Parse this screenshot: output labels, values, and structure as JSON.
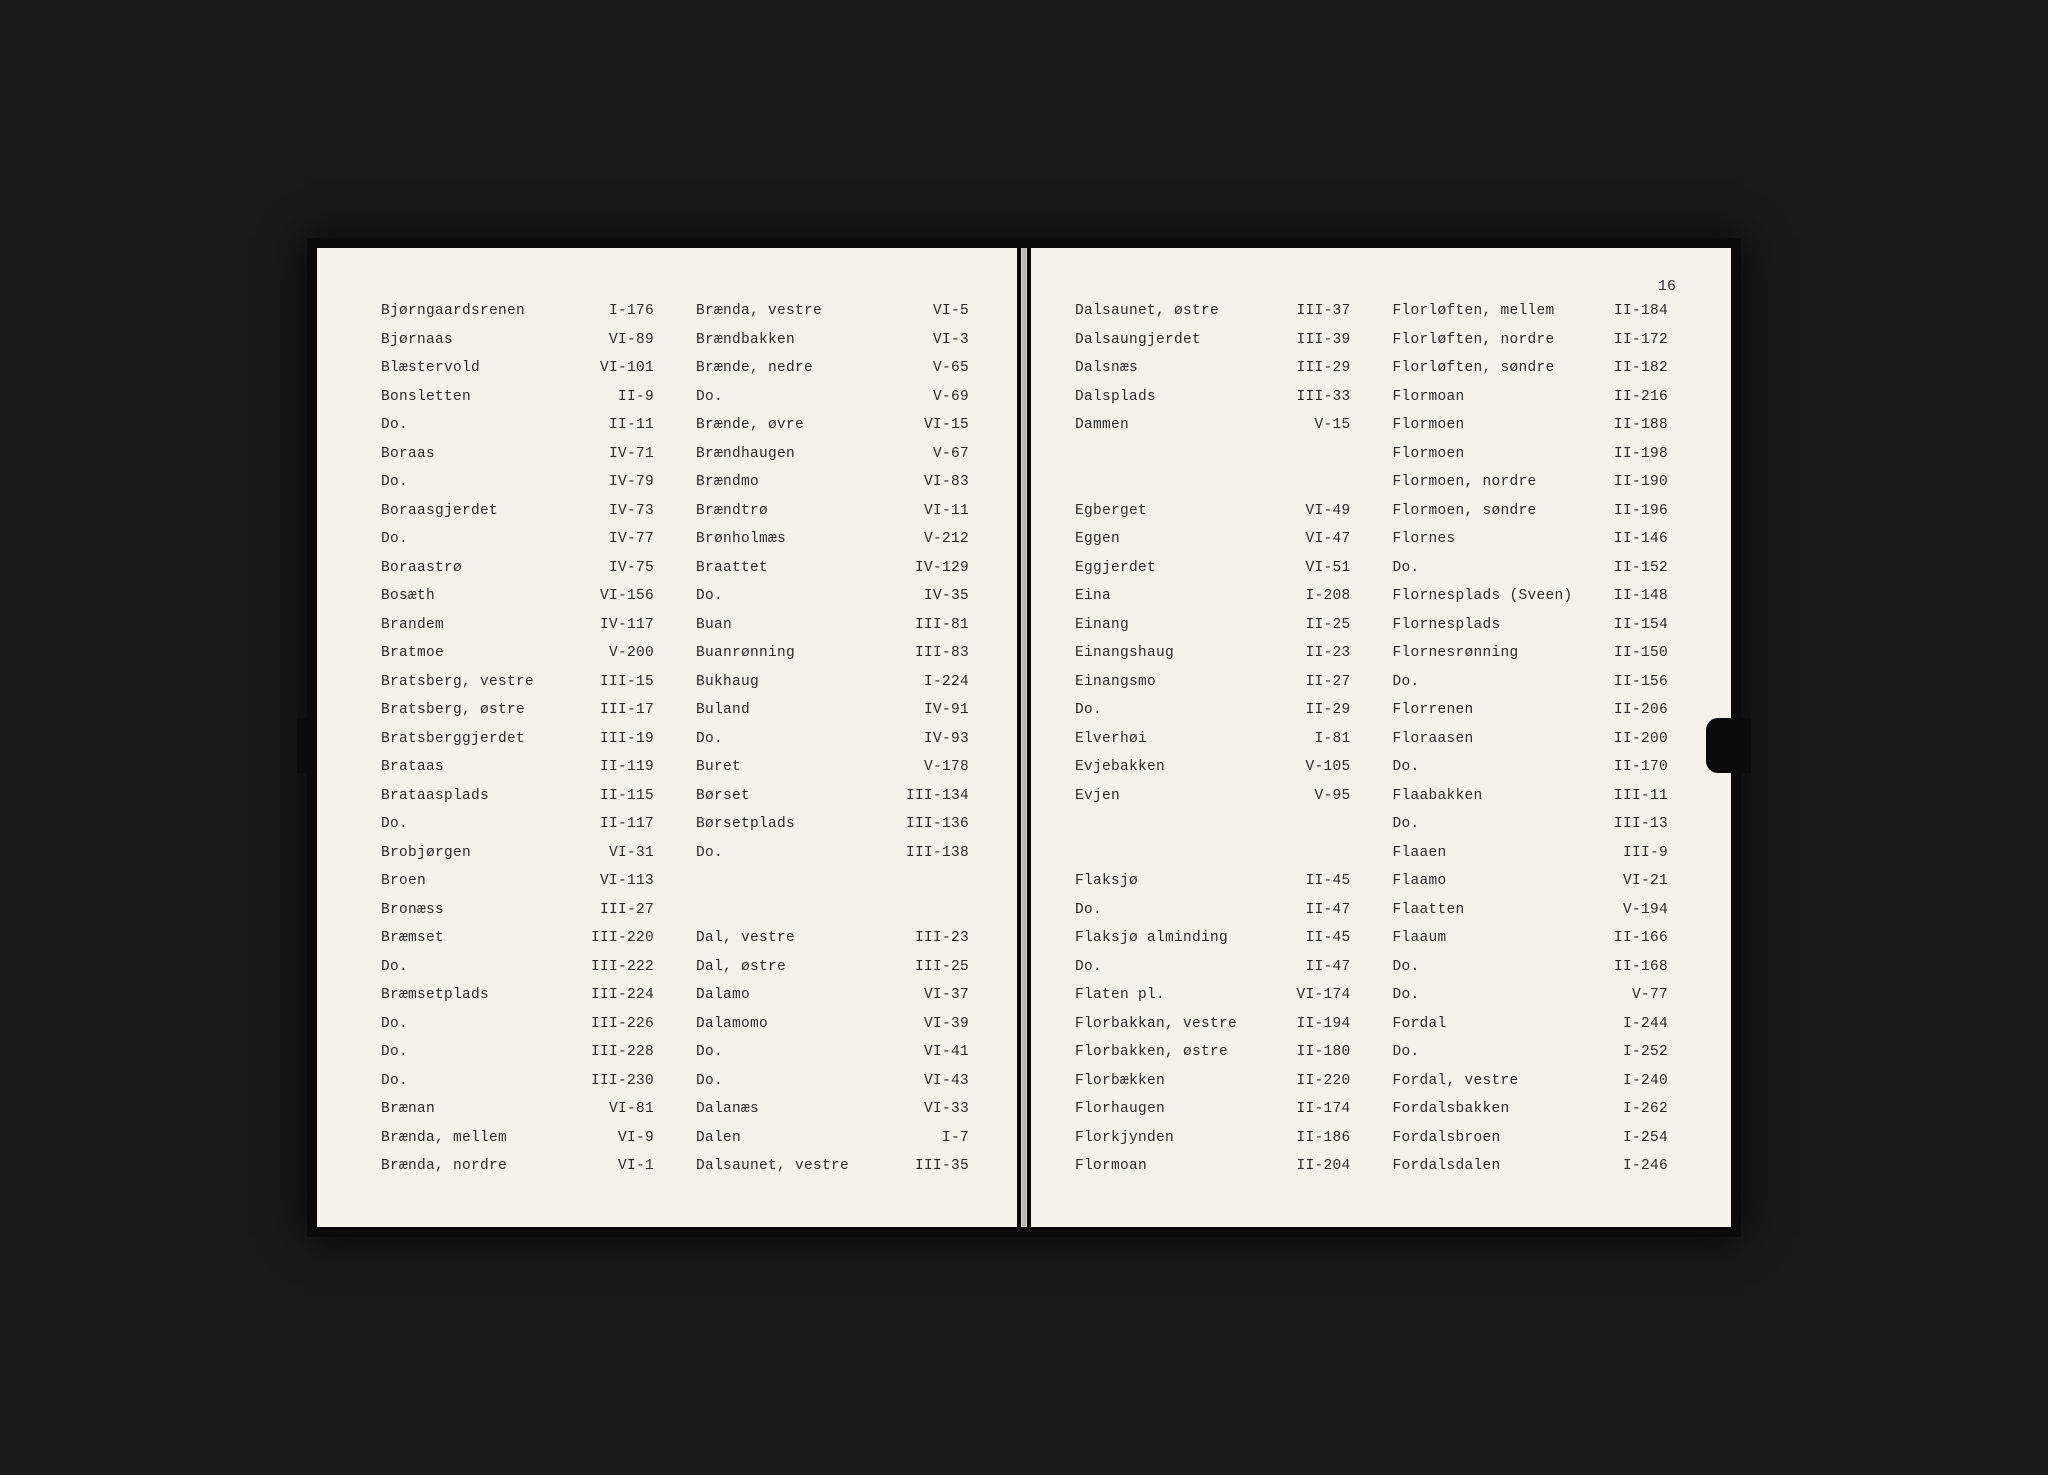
{
  "page_number": "16",
  "typography": {
    "font_family": "Courier",
    "font_size_pt": 14.5,
    "text_color": "#2a2a2a",
    "page_bg": "#f5f2eb",
    "outer_bg": "#1a1a1a"
  },
  "left_page": {
    "col1": [
      {
        "name": "Bjørngaardsrenen",
        "ref": "I-176"
      },
      {
        "name": "Bjørnaas",
        "ref": "VI-89"
      },
      {
        "name": "Blæstervold",
        "ref": "VI-101"
      },
      {
        "name": "Bonsletten",
        "ref": "II-9"
      },
      {
        "name": " Do.",
        "ref": "II-11"
      },
      {
        "name": "Boraas",
        "ref": "IV-71"
      },
      {
        "name": " Do.",
        "ref": "IV-79"
      },
      {
        "name": "Boraasgjerdet",
        "ref": "IV-73"
      },
      {
        "name": " Do.",
        "ref": "IV-77"
      },
      {
        "name": "Boraastrø",
        "ref": "IV-75"
      },
      {
        "name": "Bosæth",
        "ref": "VI-156"
      },
      {
        "name": "Brandem",
        "ref": "IV-117"
      },
      {
        "name": "Bratmoe",
        "ref": "V-200"
      },
      {
        "name": "Bratsberg, vestre",
        "ref": "III-15"
      },
      {
        "name": "Bratsberg, østre",
        "ref": "III-17"
      },
      {
        "name": "Bratsberggjerdet",
        "ref": "III-19"
      },
      {
        "name": "Brataas",
        "ref": "II-119"
      },
      {
        "name": "Brataasplads",
        "ref": "II-115"
      },
      {
        "name": " Do.",
        "ref": "II-117"
      },
      {
        "name": "Brobjørgen",
        "ref": "VI-31"
      },
      {
        "name": "Broen",
        "ref": "VI-113"
      },
      {
        "name": "Bronæss",
        "ref": "III-27"
      },
      {
        "name": "Bræmset",
        "ref": "III-220"
      },
      {
        "name": " Do.",
        "ref": "III-222"
      },
      {
        "name": "Bræmsetplads",
        "ref": "III-224"
      },
      {
        "name": " Do.",
        "ref": "III-226"
      },
      {
        "name": " Do.",
        "ref": "III-228"
      },
      {
        "name": " Do.",
        "ref": "III-230"
      },
      {
        "name": "Brænan",
        "ref": "VI-81"
      },
      {
        "name": "Brænda, mellem",
        "ref": "VI-9"
      },
      {
        "name": "Brænda, nordre",
        "ref": "VI-1"
      }
    ],
    "col2": [
      {
        "name": "Brænda, vestre",
        "ref": "VI-5"
      },
      {
        "name": "Brændbakken",
        "ref": "VI-3"
      },
      {
        "name": "Brænde, nedre",
        "ref": "V-65"
      },
      {
        "name": " Do.",
        "ref": "V-69"
      },
      {
        "name": "Brænde, øvre",
        "ref": "VI-15"
      },
      {
        "name": "Brændhaugen",
        "ref": "V-67"
      },
      {
        "name": "Brændmo",
        "ref": "VI-83"
      },
      {
        "name": "Brændtrø",
        "ref": "VI-11"
      },
      {
        "name": "Brønholmæs",
        "ref": "V-212"
      },
      {
        "name": "Braattet",
        "ref": "IV-129"
      },
      {
        "name": " Do.",
        "ref": "IV-35"
      },
      {
        "name": "Buan",
        "ref": "III-81"
      },
      {
        "name": "Buanrønning",
        "ref": "III-83"
      },
      {
        "name": "Bukhaug",
        "ref": "I-224"
      },
      {
        "name": "Buland",
        "ref": "IV-91"
      },
      {
        "name": " Do.",
        "ref": "IV-93"
      },
      {
        "name": "Buret",
        "ref": "V-178"
      },
      {
        "name": "Børset",
        "ref": "III-134"
      },
      {
        "name": "Børsetplads",
        "ref": "III-136"
      },
      {
        "name": " Do.",
        "ref": "III-138"
      },
      {
        "gap": true
      },
      {
        "gap": true
      },
      {
        "name": "Dal, vestre",
        "ref": "III-23"
      },
      {
        "name": "Dal, østre",
        "ref": "III-25"
      },
      {
        "name": "Dalamo",
        "ref": "VI-37"
      },
      {
        "name": "Dalamomo",
        "ref": "VI-39"
      },
      {
        "name": " Do.",
        "ref": "VI-41"
      },
      {
        "name": " Do.",
        "ref": "VI-43"
      },
      {
        "name": "Dalanæs",
        "ref": "VI-33"
      },
      {
        "name": "Dalen",
        "ref": "I-7"
      },
      {
        "name": "Dalsaunet, vestre",
        "ref": "III-35"
      }
    ]
  },
  "right_page": {
    "col1": [
      {
        "name": "Dalsaunet, østre",
        "ref": "III-37"
      },
      {
        "name": "Dalsaungjerdet",
        "ref": "III-39"
      },
      {
        "name": "Dalsnæs",
        "ref": "III-29"
      },
      {
        "name": "Dalsplads",
        "ref": "III-33"
      },
      {
        "name": "Dammen",
        "ref": "V-15"
      },
      {
        "gap": true
      },
      {
        "gap": true
      },
      {
        "name": "Egberget",
        "ref": "VI-49"
      },
      {
        "name": "Eggen",
        "ref": "VI-47"
      },
      {
        "name": "Eggjerdet",
        "ref": "VI-51"
      },
      {
        "name": "Eina",
        "ref": "I-208"
      },
      {
        "name": "Einang",
        "ref": "II-25"
      },
      {
        "name": "Einangshaug",
        "ref": "II-23"
      },
      {
        "name": "Einangsmo",
        "ref": "II-27"
      },
      {
        "name": " Do.",
        "ref": "II-29"
      },
      {
        "name": "Elverhøi",
        "ref": "I-81"
      },
      {
        "name": "Evjebakken",
        "ref": "V-105"
      },
      {
        "name": "Evjen",
        "ref": "V-95"
      },
      {
        "gap": true
      },
      {
        "gap": true
      },
      {
        "name": "Flaksjø",
        "ref": "II-45"
      },
      {
        "name": " Do.",
        "ref": "II-47"
      },
      {
        "name": "Flaksjø alminding",
        "ref": "II-45"
      },
      {
        "name": " Do.",
        "ref": "II-47"
      },
      {
        "name": "Flaten pl.",
        "ref": "VI-174"
      },
      {
        "name": "Florbakkan, vestre",
        "ref": "II-194"
      },
      {
        "name": "Florbakken, østre",
        "ref": "II-180"
      },
      {
        "name": "Florbækken",
        "ref": "II-220"
      },
      {
        "name": "Florhaugen",
        "ref": "II-174"
      },
      {
        "name": "Florkjynden",
        "ref": "II-186"
      },
      {
        "name": "Flormoan",
        "ref": "II-204"
      }
    ],
    "col2": [
      {
        "name": "Florløften, mellem",
        "ref": "II-184"
      },
      {
        "name": "Florløften, nordre",
        "ref": "II-172"
      },
      {
        "name": "Florløften, søndre",
        "ref": "II-182"
      },
      {
        "name": "Flormoan",
        "ref": "II-216"
      },
      {
        "name": "Flormoen",
        "ref": "II-188"
      },
      {
        "name": "Flormoen",
        "ref": "II-198"
      },
      {
        "name": "Flormoen, nordre",
        "ref": "II-190"
      },
      {
        "name": "Flormoen, søndre",
        "ref": "II-196"
      },
      {
        "name": "Flornes",
        "ref": "II-146"
      },
      {
        "name": " Do.",
        "ref": "II-152"
      },
      {
        "name": "Flornesplads (Sveen)",
        "ref": "II-148"
      },
      {
        "name": "Flornesplads",
        "ref": "II-154"
      },
      {
        "name": "Flornesrønning",
        "ref": "II-150"
      },
      {
        "name": " Do.",
        "ref": "II-156"
      },
      {
        "name": "Florrenen",
        "ref": "II-206"
      },
      {
        "name": "Floraasen",
        "ref": "II-200"
      },
      {
        "name": " Do.",
        "ref": "II-170"
      },
      {
        "name": "Flaabakken",
        "ref": "III-11"
      },
      {
        "name": " Do.",
        "ref": "III-13"
      },
      {
        "name": "Flaaen",
        "ref": "III-9"
      },
      {
        "name": "Flaamo",
        "ref": "VI-21"
      },
      {
        "name": "Flaatten",
        "ref": "V-194"
      },
      {
        "name": "Flaaum",
        "ref": "II-166"
      },
      {
        "name": " Do.",
        "ref": "II-168"
      },
      {
        "name": " Do.",
        "ref": "V-77"
      },
      {
        "name": "Fordal",
        "ref": "I-244"
      },
      {
        "name": " Do.",
        "ref": "I-252"
      },
      {
        "name": "Fordal, vestre",
        "ref": "I-240"
      },
      {
        "name": "Fordalsbakken",
        "ref": "I-262"
      },
      {
        "name": "Fordalsbroen",
        "ref": "I-254"
      },
      {
        "name": "Fordalsdalen",
        "ref": "I-246"
      }
    ]
  }
}
